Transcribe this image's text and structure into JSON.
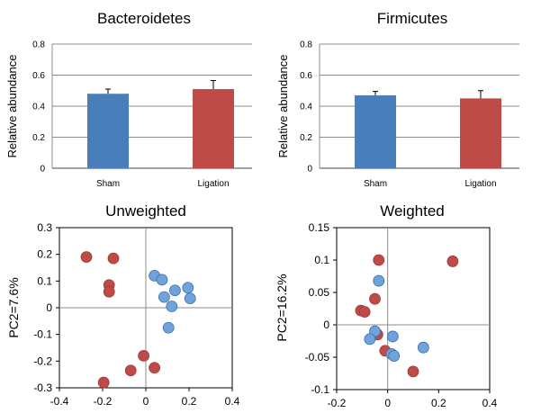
{
  "chart_data": [
    {
      "type": "bar",
      "title": "Bacteroidetes",
      "ylabel": "Relative abundance",
      "categories": [
        "Sham",
        "Ligation"
      ],
      "values": [
        0.48,
        0.51
      ],
      "errors": [
        0.03,
        0.055
      ],
      "colors": [
        "#4a7ebb",
        "#be4b48"
      ],
      "ylim": [
        0,
        0.8
      ],
      "yticks": [
        "0",
        "0.2",
        "0.4",
        "0.6",
        "0.8"
      ],
      "grid": true
    },
    {
      "type": "bar",
      "title": "Firmicutes",
      "ylabel": "Relative abundance",
      "categories": [
        "Sham",
        "Ligation"
      ],
      "values": [
        0.47,
        0.45
      ],
      "errors": [
        0.025,
        0.05
      ],
      "colors": [
        "#4a7ebb",
        "#be4b48"
      ],
      "ylim": [
        0,
        0.8
      ],
      "yticks": [
        "0",
        "0.2",
        "0.4",
        "0.6",
        "0.8"
      ],
      "grid": true
    },
    {
      "type": "scatter",
      "title": "Unweighted",
      "ylabel": "PC2=7.6%",
      "xlim": [
        -0.4,
        0.4
      ],
      "ylim": [
        -0.3,
        0.3
      ],
      "xticks": [
        "-0.4",
        "-0.2",
        "0",
        "0.2",
        "0.4"
      ],
      "yticks": [
        "0.3",
        "0.2",
        "0.1",
        "0",
        "-0.1",
        "-0.2",
        "-0.3"
      ],
      "series": [
        {
          "color": "#be4b48",
          "points": [
            {
              "x": -0.275,
              "y": 0.19
            },
            {
              "x": -0.15,
              "y": 0.185
            },
            {
              "x": -0.17,
              "y": 0.085
            },
            {
              "x": -0.17,
              "y": 0.06
            },
            {
              "x": -0.01,
              "y": -0.18
            },
            {
              "x": -0.07,
              "y": -0.235
            },
            {
              "x": 0.04,
              "y": -0.225
            },
            {
              "x": -0.195,
              "y": -0.28
            }
          ]
        },
        {
          "color": "#6fa3dc",
          "points": [
            {
              "x": 0.04,
              "y": 0.12
            },
            {
              "x": 0.075,
              "y": 0.105
            },
            {
              "x": 0.135,
              "y": 0.065
            },
            {
              "x": 0.195,
              "y": 0.075
            },
            {
              "x": 0.085,
              "y": 0.04
            },
            {
              "x": 0.205,
              "y": 0.035
            },
            {
              "x": 0.12,
              "y": 0.005
            },
            {
              "x": 0.105,
              "y": -0.075
            }
          ]
        }
      ]
    },
    {
      "type": "scatter",
      "title": "Weighted",
      "ylabel": "PC2=16.2%",
      "xlim": [
        -0.2,
        0.4
      ],
      "ylim": [
        -0.1,
        0.15
      ],
      "xticks": [
        "-0.2",
        "0",
        "0.2",
        "0.4"
      ],
      "yticks": [
        "0.15",
        "0.1",
        "0.05",
        "0",
        "-0.05",
        "-0.1"
      ],
      "series": [
        {
          "color": "#be4b48",
          "points": [
            {
              "x": -0.035,
              "y": 0.1
            },
            {
              "x": 0.255,
              "y": 0.098
            },
            {
              "x": -0.05,
              "y": 0.04
            },
            {
              "x": -0.105,
              "y": 0.022
            },
            {
              "x": -0.09,
              "y": 0.02
            },
            {
              "x": -0.04,
              "y": -0.015
            },
            {
              "x": -0.01,
              "y": -0.04
            },
            {
              "x": 0.1,
              "y": -0.072
            }
          ]
        },
        {
          "color": "#6fa3dc",
          "points": [
            {
              "x": -0.035,
              "y": 0.068
            },
            {
              "x": -0.05,
              "y": -0.01
            },
            {
              "x": -0.07,
              "y": -0.022
            },
            {
              "x": 0.02,
              "y": -0.018
            },
            {
              "x": 0.14,
              "y": -0.035
            },
            {
              "x": 0.015,
              "y": -0.045
            },
            {
              "x": 0.025,
              "y": -0.048
            }
          ]
        }
      ]
    }
  ]
}
